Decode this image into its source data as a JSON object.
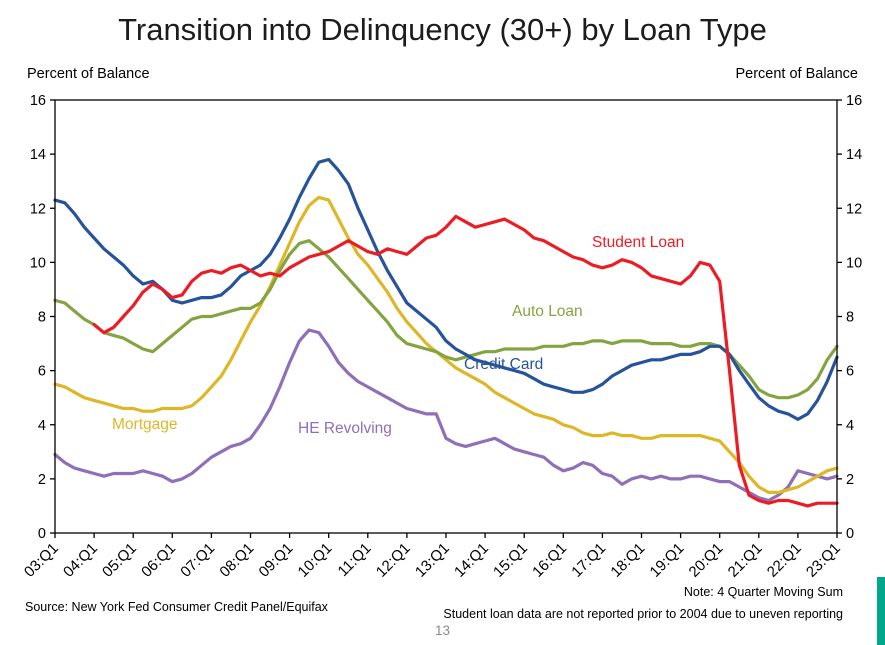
{
  "page": {
    "source": "Source: New York Fed Consumer Credit Panel/Equifax",
    "note_line1": "Note: 4 Quarter Moving Sum",
    "note_line2": "Student loan data are not reported prior to 2004 due to uneven reporting",
    "page_number": "13"
  },
  "colors": {
    "credit_card": "#27539b",
    "student_loan": "#ed1c24",
    "auto_loan": "#84a441",
    "mortgage": "#ddb727",
    "he_revolving": "#8e6fb8",
    "axis": "#000000",
    "accent_bar": "#00a78b"
  },
  "chart_data": {
    "type": "line",
    "title": "Transition into Delinquency (30+) by Loan Type",
    "ylabel": "Percent of Balance",
    "ylim": [
      0,
      16
    ],
    "ytick_step": 2,
    "x_start": "2003:Q1",
    "x_end": "2023:Q1",
    "x_frequency": "quarterly",
    "x_ticks_every": 4,
    "x_tick_labels": [
      "03:Q1",
      "04:Q1",
      "05:Q1",
      "06:Q1",
      "07:Q1",
      "08:Q1",
      "09:Q1",
      "10:Q1",
      "11:Q1",
      "12:Q1",
      "13:Q1",
      "14:Q1",
      "15:Q1",
      "16:Q1",
      "17:Q1",
      "18:Q1",
      "19:Q1",
      "20:Q1",
      "21:Q1",
      "22:Q1",
      "23:Q1"
    ],
    "grid": false,
    "legend": "inline-labels",
    "series": [
      {
        "name": "HE Revolving",
        "color": "#8e6fb8",
        "values": [
          2.9,
          2.6,
          2.4,
          2.3,
          2.2,
          2.1,
          2.2,
          2.2,
          2.2,
          2.3,
          2.2,
          2.1,
          1.9,
          2.0,
          2.2,
          2.5,
          2.8,
          3.0,
          3.2,
          3.3,
          3.5,
          4.0,
          4.6,
          5.4,
          6.3,
          7.1,
          7.5,
          7.4,
          6.9,
          6.3,
          5.9,
          5.6,
          5.4,
          5.2,
          5.0,
          4.8,
          4.6,
          4.5,
          4.4,
          4.4,
          3.5,
          3.3,
          3.2,
          3.3,
          3.4,
          3.5,
          3.3,
          3.1,
          3.0,
          2.9,
          2.8,
          2.5,
          2.3,
          2.4,
          2.6,
          2.5,
          2.2,
          2.1,
          1.8,
          2.0,
          2.1,
          2.0,
          2.1,
          2.0,
          2.0,
          2.1,
          2.1,
          2.0,
          1.9,
          1.9,
          1.7,
          1.5,
          1.3,
          1.2,
          1.4,
          1.7,
          2.3,
          2.2,
          2.1,
          2.0,
          2.1
        ]
      },
      {
        "name": "Mortgage",
        "color": "#ddb727",
        "values": [
          5.5,
          5.4,
          5.2,
          5.0,
          4.9,
          4.8,
          4.7,
          4.6,
          4.6,
          4.5,
          4.5,
          4.6,
          4.6,
          4.6,
          4.7,
          5.0,
          5.4,
          5.8,
          6.4,
          7.1,
          7.8,
          8.4,
          9.1,
          9.9,
          10.7,
          11.5,
          12.1,
          12.4,
          12.3,
          11.6,
          10.9,
          10.3,
          9.9,
          9.4,
          8.9,
          8.3,
          7.8,
          7.4,
          7.0,
          6.7,
          6.4,
          6.1,
          5.9,
          5.7,
          5.5,
          5.2,
          5.0,
          4.8,
          4.6,
          4.4,
          4.3,
          4.2,
          4.0,
          3.9,
          3.7,
          3.6,
          3.6,
          3.7,
          3.6,
          3.6,
          3.5,
          3.5,
          3.6,
          3.6,
          3.6,
          3.6,
          3.6,
          3.5,
          3.4,
          3.0,
          2.6,
          2.1,
          1.7,
          1.5,
          1.5,
          1.6,
          1.7,
          1.9,
          2.1,
          2.3,
          2.4
        ]
      },
      {
        "name": "Auto Loan",
        "color": "#84a441",
        "values": [
          8.6,
          8.5,
          8.2,
          7.9,
          7.7,
          7.4,
          7.3,
          7.2,
          7.0,
          6.8,
          6.7,
          7.0,
          7.3,
          7.6,
          7.9,
          8.0,
          8.0,
          8.1,
          8.2,
          8.3,
          8.3,
          8.5,
          9.0,
          9.7,
          10.3,
          10.7,
          10.8,
          10.5,
          10.2,
          9.8,
          9.4,
          9.0,
          8.6,
          8.2,
          7.8,
          7.3,
          7.0,
          6.9,
          6.8,
          6.7,
          6.5,
          6.4,
          6.5,
          6.6,
          6.7,
          6.7,
          6.8,
          6.8,
          6.8,
          6.8,
          6.9,
          6.9,
          6.9,
          7.0,
          7.0,
          7.1,
          7.1,
          7.0,
          7.1,
          7.1,
          7.1,
          7.0,
          7.0,
          7.0,
          6.9,
          6.9,
          7.0,
          7.0,
          6.9,
          6.6,
          6.2,
          5.8,
          5.3,
          5.1,
          5.0,
          5.0,
          5.1,
          5.3,
          5.7,
          6.4,
          6.9
        ]
      },
      {
        "name": "Credit Card",
        "color": "#27539b",
        "values": [
          12.3,
          12.2,
          11.8,
          11.3,
          10.9,
          10.5,
          10.2,
          9.9,
          9.5,
          9.2,
          9.3,
          9.0,
          8.6,
          8.5,
          8.6,
          8.7,
          8.7,
          8.8,
          9.1,
          9.5,
          9.7,
          9.9,
          10.3,
          10.9,
          11.6,
          12.4,
          13.1,
          13.7,
          13.8,
          13.4,
          12.9,
          12.0,
          11.2,
          10.4,
          9.7,
          9.1,
          8.5,
          8.2,
          7.9,
          7.6,
          7.1,
          6.8,
          6.6,
          6.4,
          6.3,
          6.2,
          6.1,
          6.0,
          5.9,
          5.7,
          5.5,
          5.4,
          5.3,
          5.2,
          5.2,
          5.3,
          5.5,
          5.8,
          6.0,
          6.2,
          6.3,
          6.4,
          6.4,
          6.5,
          6.6,
          6.6,
          6.7,
          6.9,
          6.9,
          6.6,
          6.0,
          5.5,
          5.0,
          4.7,
          4.5,
          4.4,
          4.2,
          4.4,
          4.9,
          5.6,
          6.5
        ]
      },
      {
        "name": "Student Loan",
        "color": "#ed1c24",
        "values": [
          null,
          null,
          null,
          null,
          7.7,
          7.4,
          7.6,
          8.0,
          8.4,
          8.9,
          9.2,
          9.0,
          8.7,
          8.8,
          9.3,
          9.6,
          9.7,
          9.6,
          9.8,
          9.9,
          9.7,
          9.5,
          9.6,
          9.5,
          9.8,
          10.0,
          10.2,
          10.3,
          10.4,
          10.6,
          10.8,
          10.6,
          10.4,
          10.3,
          10.5,
          10.4,
          10.3,
          10.6,
          10.9,
          11.0,
          11.3,
          11.7,
          11.5,
          11.3,
          11.4,
          11.5,
          11.6,
          11.4,
          11.2,
          10.9,
          10.8,
          10.6,
          10.4,
          10.2,
          10.1,
          9.9,
          9.8,
          9.9,
          10.1,
          10.0,
          9.8,
          9.5,
          9.4,
          9.3,
          9.2,
          9.5,
          10.0,
          9.9,
          9.3,
          6.0,
          2.5,
          1.4,
          1.2,
          1.1,
          1.2,
          1.2,
          1.1,
          1.0,
          1.1,
          1.1,
          1.1
        ]
      }
    ]
  }
}
